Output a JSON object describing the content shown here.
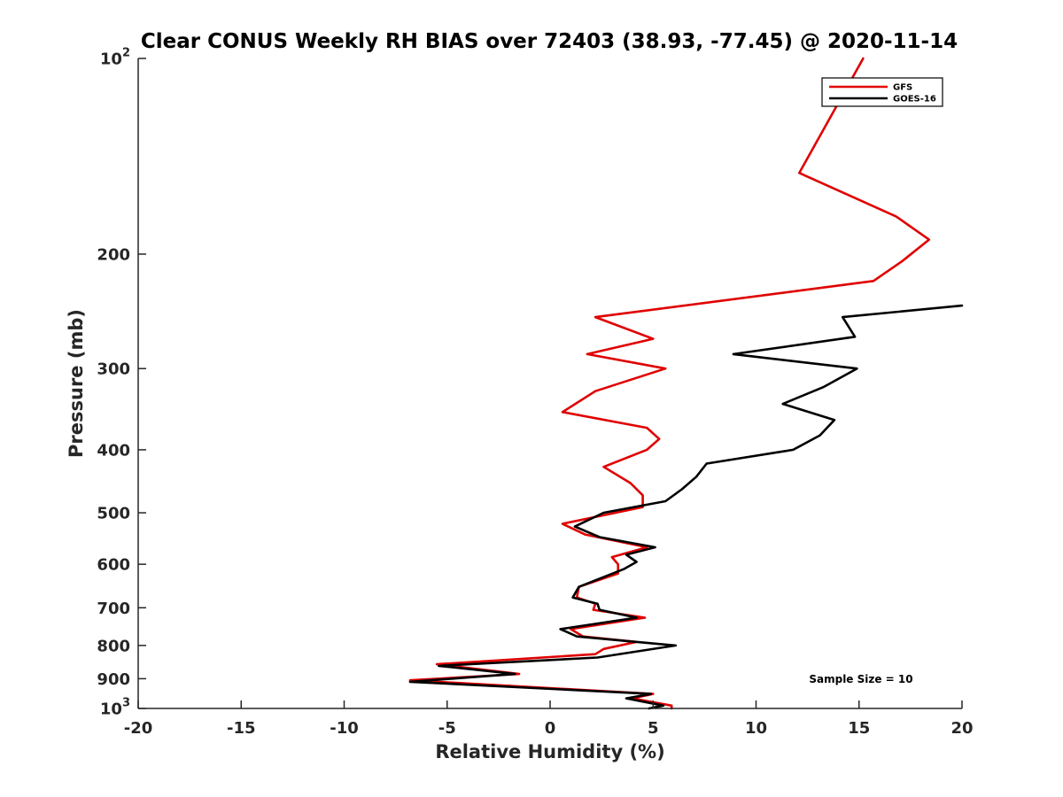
{
  "chart_data": {
    "type": "line",
    "title": "Clear CONUS Weekly RH BIAS over 72403 (38.93, -77.45) @ 2020-11-14",
    "xlabel": "Relative Humidity (%)",
    "ylabel": "Pressure (mb)",
    "xlim": [
      -20,
      20
    ],
    "ylim": [
      100,
      1000
    ],
    "y_scale": "log",
    "y_reversed": true,
    "grid": false,
    "legend_position": "top-right",
    "x_ticks": [
      "-20",
      "-15",
      "-10",
      "-5",
      "0",
      "5",
      "10",
      "15",
      "20"
    ],
    "y_ticks": [
      {
        "value": 100,
        "base": "10",
        "exp": "2"
      },
      {
        "value": 200,
        "label": "200"
      },
      {
        "value": 300,
        "label": "300"
      },
      {
        "value": 400,
        "label": "400"
      },
      {
        "value": 500,
        "label": "500"
      },
      {
        "value": 600,
        "label": "600"
      },
      {
        "value": 700,
        "label": "700"
      },
      {
        "value": 800,
        "label": "800"
      },
      {
        "value": 900,
        "label": "900"
      },
      {
        "value": 1000,
        "base": "10",
        "exp": "3"
      }
    ],
    "annotation": "Sample Size = 10",
    "series": [
      {
        "name": "GFS",
        "color": "#e00000",
        "points": [
          [
            15.2,
            100
          ],
          [
            12.1,
            150
          ],
          [
            16.8,
            175
          ],
          [
            18.4,
            190
          ],
          [
            17.1,
            205
          ],
          [
            15.7,
            220
          ],
          [
            2.2,
            250
          ],
          [
            5.0,
            270
          ],
          [
            1.8,
            285
          ],
          [
            5.6,
            300
          ],
          [
            2.2,
            325
          ],
          [
            0.6,
            350
          ],
          [
            4.7,
            370
          ],
          [
            5.3,
            385
          ],
          [
            4.7,
            400
          ],
          [
            2.6,
            425
          ],
          [
            3.9,
            450
          ],
          [
            4.5,
            470
          ],
          [
            4.5,
            490
          ],
          [
            0.6,
            520
          ],
          [
            1.7,
            540
          ],
          [
            4.7,
            565
          ],
          [
            3.0,
            585
          ],
          [
            3.3,
            600
          ],
          [
            3.3,
            620
          ],
          [
            1.4,
            650
          ],
          [
            1.3,
            675
          ],
          [
            2.2,
            690
          ],
          [
            2.1,
            705
          ],
          [
            4.6,
            725
          ],
          [
            1.0,
            755
          ],
          [
            1.6,
            775
          ],
          [
            4.2,
            790
          ],
          [
            2.6,
            810
          ],
          [
            2.2,
            825
          ],
          [
            -5.5,
            855
          ],
          [
            -1.5,
            885
          ],
          [
            -6.8,
            905
          ],
          [
            5.0,
            950
          ],
          [
            4.0,
            965
          ],
          [
            5.9,
            990
          ],
          [
            5.9,
            1000
          ]
        ]
      },
      {
        "name": "GOES-16",
        "color": "#000000",
        "points": [
          [
            20.0,
            240
          ],
          [
            14.2,
            250
          ],
          [
            14.8,
            268
          ],
          [
            8.9,
            285
          ],
          [
            14.9,
            300
          ],
          [
            13.3,
            320
          ],
          [
            11.3,
            340
          ],
          [
            13.8,
            360
          ],
          [
            13.1,
            380
          ],
          [
            11.8,
            400
          ],
          [
            7.6,
            420
          ],
          [
            7.1,
            440
          ],
          [
            6.4,
            460
          ],
          [
            5.6,
            480
          ],
          [
            2.6,
            500
          ],
          [
            1.2,
            525
          ],
          [
            2.4,
            545
          ],
          [
            5.1,
            565
          ],
          [
            3.7,
            580
          ],
          [
            4.2,
            595
          ],
          [
            3.6,
            610
          ],
          [
            1.4,
            650
          ],
          [
            1.1,
            675
          ],
          [
            2.3,
            690
          ],
          [
            2.4,
            705
          ],
          [
            4.2,
            725
          ],
          [
            0.5,
            755
          ],
          [
            1.3,
            775
          ],
          [
            6.1,
            800
          ],
          [
            2.3,
            835
          ],
          [
            -5.4,
            860
          ],
          [
            -1.7,
            885
          ],
          [
            -6.8,
            910
          ],
          [
            4.9,
            950
          ],
          [
            3.7,
            965
          ],
          [
            5.5,
            990
          ],
          [
            4.8,
            1000
          ]
        ]
      }
    ]
  }
}
